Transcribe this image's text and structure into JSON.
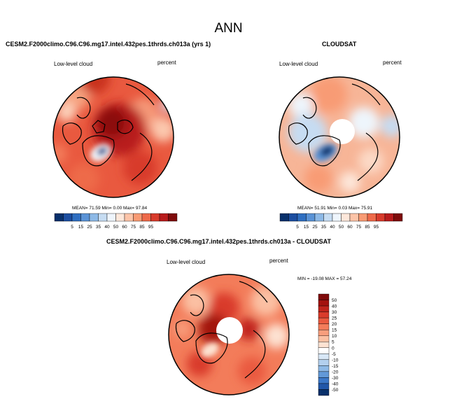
{
  "title": "ANN",
  "panels": [
    {
      "id": "model",
      "title": "CESM2.F2000climo.C96.C96.mg17.intel.432pes.1thrds.ch013a (yrs 1)",
      "left_label": "Low-level cloud",
      "right_label": "percent",
      "stats_text": "MEAN=  71.59   Min=   0.00   Max=  97.84",
      "stats": {
        "mean": 71.59,
        "min": 0.0,
        "max": 97.84
      }
    },
    {
      "id": "obs",
      "title": "CLOUDSAT",
      "left_label": "Low-level cloud",
      "right_label": "percent",
      "stats_text": "MEAN=  51.91   Min=   0.03   Max=  75.91",
      "stats": {
        "mean": 51.91,
        "min": 0.03,
        "max": 75.91
      }
    },
    {
      "id": "diff",
      "title": "CESM2.F2000climo.C96.C96.mg17.intel.432pes.1thrds.ch013a - CLOUDSAT",
      "left_label": "Low-level cloud",
      "right_label": "percent",
      "stats_text": "MIN = -19.08  MAX =  57.24",
      "stats": {
        "min": -19.08,
        "max": 57.24
      }
    }
  ],
  "colorbars": {
    "field": {
      "labels": [
        "5",
        "15",
        "25",
        "35",
        "40",
        "50",
        "60",
        "75",
        "85",
        "95"
      ],
      "colors": [
        "#08306b",
        "#1c4ea1",
        "#2f6fc1",
        "#5a93d6",
        "#8db9e6",
        "#c6dcf2",
        "#eef5fc",
        "#fde7da",
        "#fcc4a8",
        "#f89b74",
        "#ee6a4a",
        "#d83b2c",
        "#b81b1c",
        "#7f0b0b"
      ]
    },
    "diff": {
      "labels": [
        "50",
        "40",
        "30",
        "25",
        "20",
        "15",
        "10",
        "5",
        "0",
        "-5",
        "-10",
        "-15",
        "-20",
        "-30",
        "-40",
        "-50"
      ],
      "colors": [
        "#7f0b0b",
        "#a3120f",
        "#c0241c",
        "#d93b2b",
        "#ea5a3f",
        "#f37c5a",
        "#f89e7d",
        "#fbc0a3",
        "#fde2d2",
        "#ffffff",
        "#d8e7f6",
        "#b3d0ee",
        "#8db9e6",
        "#6299d8",
        "#3c78c8",
        "#2157a8",
        "#08306b"
      ]
    }
  },
  "chart_data": [
    {
      "type": "heatmap",
      "projection": "north-polar-stereographic",
      "title": "CESM2.F2000climo.C96.C96.mg17.intel.432pes.1thrds.ch013a (yrs 1)",
      "variable": "Low-level cloud",
      "units": "percent",
      "season": "ANN",
      "contour_levels": [
        5,
        15,
        25,
        35,
        40,
        50,
        60,
        75,
        85,
        95
      ],
      "mean": 71.59,
      "min": 0.0,
      "max": 97.84
    },
    {
      "type": "heatmap",
      "projection": "north-polar-stereographic",
      "title": "CLOUDSAT",
      "variable": "Low-level cloud",
      "units": "percent",
      "season": "ANN",
      "contour_levels": [
        5,
        15,
        25,
        35,
        40,
        50,
        60,
        75,
        85,
        95
      ],
      "mean": 51.91,
      "min": 0.03,
      "max": 75.91
    },
    {
      "type": "heatmap",
      "projection": "north-polar-stereographic",
      "title": "CESM2.F2000climo.C96.C96.mg17.intel.432pes.1thrds.ch013a - CLOUDSAT",
      "variable": "Low-level cloud",
      "units": "percent",
      "season": "ANN",
      "contour_levels": [
        -50,
        -40,
        -30,
        -20,
        -15,
        -10,
        -5,
        0,
        5,
        10,
        15,
        20,
        25,
        30,
        40,
        50
      ],
      "min": -19.08,
      "max": 57.24
    }
  ]
}
